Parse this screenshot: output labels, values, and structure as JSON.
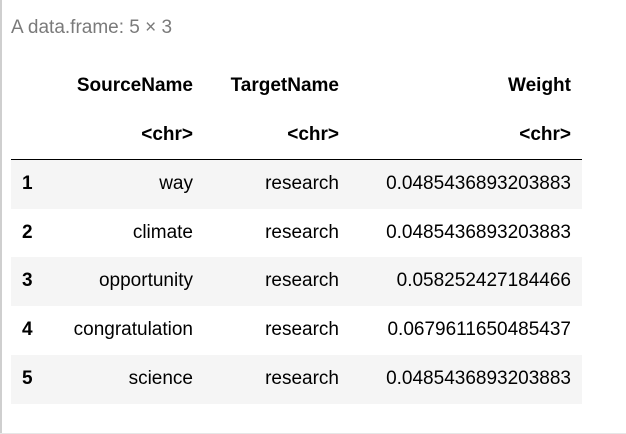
{
  "caption": "A data.frame: 5 × 3",
  "columns": [
    "SourceName",
    "TargetName",
    "Weight"
  ],
  "column_types": [
    "<chr>",
    "<chr>",
    "<chr>"
  ],
  "rows": [
    {
      "index": "1",
      "source": "way",
      "target": "research",
      "weight": "0.0485436893203883"
    },
    {
      "index": "2",
      "source": "climate",
      "target": "research",
      "weight": "0.0485436893203883"
    },
    {
      "index": "3",
      "source": "opportunity",
      "target": "research",
      "weight": "0.058252427184466"
    },
    {
      "index": "4",
      "source": "congratulation",
      "target": "research",
      "weight": "0.0679611650485437"
    },
    {
      "index": "5",
      "source": "science",
      "target": "research",
      "weight": "0.0485436893203883"
    }
  ]
}
